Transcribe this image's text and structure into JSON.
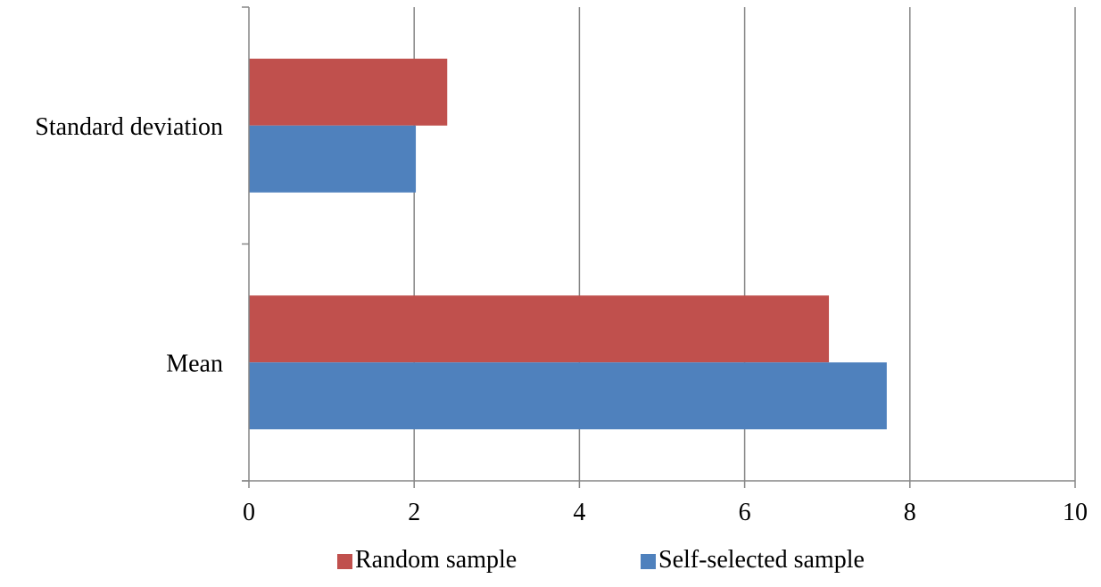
{
  "chart_data": {
    "type": "bar",
    "orientation": "horizontal",
    "categories": [
      "Standard deviation",
      "Mean"
    ],
    "series": [
      {
        "name": "Random sample",
        "values": [
          2.4,
          7.02
        ],
        "color": "#C0504D"
      },
      {
        "name": "Self-selected sample",
        "values": [
          2.02,
          7.72
        ],
        "color": "#4F81BD"
      }
    ],
    "x_ticks": [
      "0",
      "2",
      "4",
      "6",
      "8",
      "10"
    ],
    "xlim": [
      0,
      10
    ],
    "grid": "vertical",
    "legend_position": "bottom",
    "title": "",
    "xlabel": "",
    "ylabel": ""
  },
  "colors": {
    "gridline": "#868686",
    "axis": "#868686"
  }
}
